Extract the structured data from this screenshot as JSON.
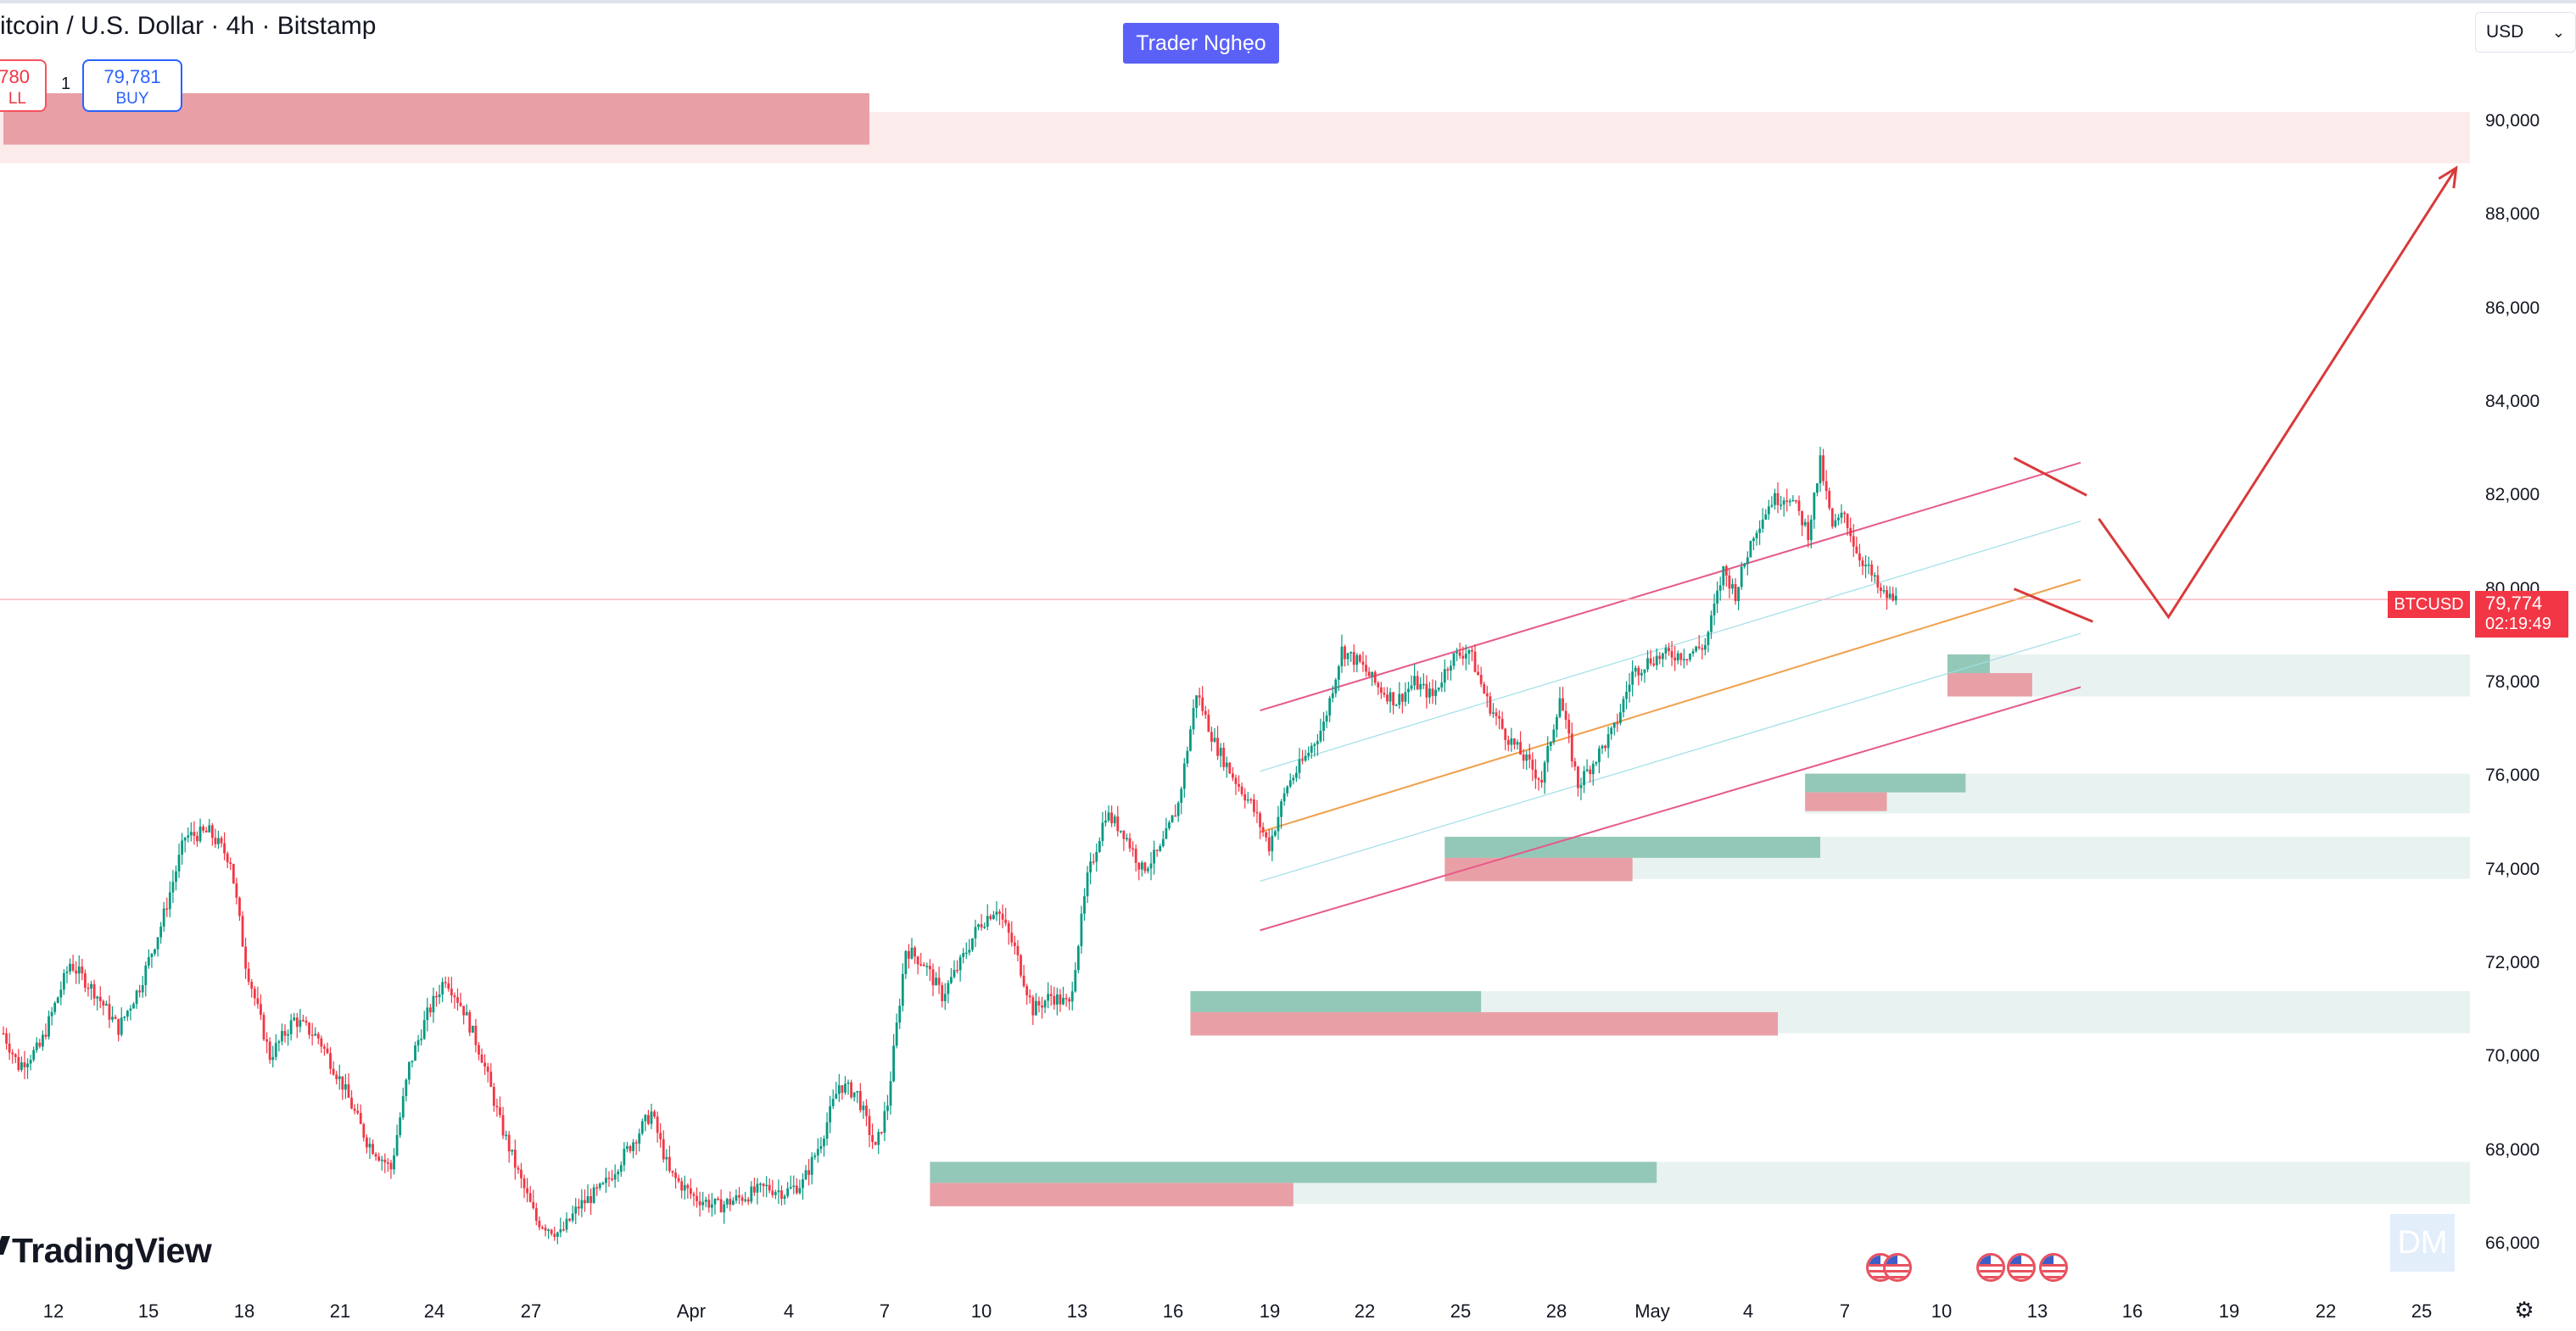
{
  "header": {
    "title": "itcoin / U.S. Dollar · 4h · Bitstamp",
    "sell_price": "780",
    "sell_label": "LL",
    "quantity": "1",
    "buy_price": "79,781",
    "buy_label": "BUY"
  },
  "badge": {
    "text": "Trader Nghẹo"
  },
  "currency_select": {
    "value": "USD",
    "chevron_icon": "chevron-down-icon"
  },
  "price_scale": {
    "ticks": [
      "90,000",
      "88,000",
      "86,000",
      "84,000",
      "82,000",
      "80,000",
      "78,000",
      "76,000",
      "74,000",
      "72,000",
      "70,000",
      "68,000",
      "66,000"
    ]
  },
  "time_scale": {
    "ticks": [
      "12",
      "15",
      "18",
      "21",
      "24",
      "27",
      "Apr",
      "4",
      "7",
      "10",
      "13",
      "16",
      "19",
      "22",
      "25",
      "28",
      "May",
      "4",
      "7",
      "10",
      "13",
      "16",
      "19",
      "22",
      "25"
    ]
  },
  "last_price": {
    "symbol": "BTCUSD",
    "price": "79,774",
    "countdown": "02:19:49",
    "color": "#f23645"
  },
  "watermark": {
    "brand": "TradingView",
    "corner": "DM"
  },
  "colors": {
    "up": "#089981",
    "down": "#f23645",
    "supply_zone": "#e8a0a6",
    "demand_zone": "#93c8b8",
    "zone_ext": "#e8f3f1",
    "top_zone": "#fcebeb",
    "channel": "#e65a8a",
    "midline": "#f0a04a",
    "projection": "#d93a3a"
  },
  "icons": [
    "us-flag-event-icon",
    "settings-icon",
    "chevron-down-icon",
    "tradingview-logo-icon"
  ],
  "chart_data": {
    "type": "candlestick",
    "symbol": "BTCUSD",
    "title": "itcoin / U.S. Dollar · 4h · Bitstamp",
    "timeframe": "4h",
    "ylim": [
      65500,
      91000
    ],
    "x_ticks": [
      "12",
      "15",
      "18",
      "21",
      "24",
      "27",
      "Apr",
      "4",
      "7",
      "10",
      "13",
      "16",
      "19",
      "22",
      "25",
      "28",
      "May",
      "4",
      "7",
      "10",
      "13",
      "16",
      "19",
      "22",
      "25"
    ],
    "last_price": 79774,
    "path_points": [
      [
        0,
        70500
      ],
      [
        5,
        69800
      ],
      [
        12,
        70200
      ],
      [
        22,
        72000
      ],
      [
        30,
        71400
      ],
      [
        38,
        70600
      ],
      [
        45,
        71500
      ],
      [
        52,
        72800
      ],
      [
        60,
        74700
      ],
      [
        68,
        74800
      ],
      [
        75,
        74200
      ],
      [
        80,
        72000
      ],
      [
        88,
        70000
      ],
      [
        96,
        70800
      ],
      [
        104,
        70400
      ],
      [
        112,
        69400
      ],
      [
        120,
        68200
      ],
      [
        128,
        67600
      ],
      [
        134,
        69800
      ],
      [
        140,
        70900
      ],
      [
        146,
        71700
      ],
      [
        152,
        71000
      ],
      [
        158,
        70000
      ],
      [
        164,
        68600
      ],
      [
        170,
        67500
      ],
      [
        176,
        66500
      ],
      [
        184,
        66200
      ],
      [
        190,
        66800
      ],
      [
        198,
        67200
      ],
      [
        206,
        68000
      ],
      [
        214,
        68800
      ],
      [
        220,
        67500
      ],
      [
        228,
        67000
      ],
      [
        236,
        66800
      ],
      [
        244,
        67000
      ],
      [
        252,
        67200
      ],
      [
        258,
        67100
      ],
      [
        264,
        67300
      ],
      [
        270,
        68200
      ],
      [
        276,
        69400
      ],
      [
        282,
        69200
      ],
      [
        288,
        68000
      ],
      [
        292,
        69000
      ],
      [
        298,
        72300
      ],
      [
        304,
        72000
      ],
      [
        310,
        71300
      ],
      [
        316,
        72000
      ],
      [
        322,
        72800
      ],
      [
        328,
        73200
      ],
      [
        334,
        72300
      ],
      [
        340,
        71000
      ],
      [
        346,
        71300
      ],
      [
        352,
        71100
      ],
      [
        358,
        73800
      ],
      [
        364,
        75200
      ],
      [
        370,
        74800
      ],
      [
        376,
        74000
      ],
      [
        382,
        74400
      ],
      [
        388,
        75400
      ],
      [
        394,
        77800
      ],
      [
        400,
        76700
      ],
      [
        406,
        76000
      ],
      [
        412,
        75400
      ],
      [
        418,
        74500
      ],
      [
        424,
        75800
      ],
      [
        430,
        76400
      ],
      [
        436,
        77100
      ],
      [
        442,
        78700
      ],
      [
        448,
        78400
      ],
      [
        454,
        77900
      ],
      [
        460,
        77600
      ],
      [
        466,
        78000
      ],
      [
        472,
        77700
      ],
      [
        478,
        78500
      ],
      [
        484,
        78700
      ],
      [
        490,
        77600
      ],
      [
        496,
        76900
      ],
      [
        502,
        76400
      ],
      [
        508,
        75900
      ],
      [
        514,
        77700
      ],
      [
        520,
        75800
      ],
      [
        526,
        76400
      ],
      [
        532,
        77000
      ],
      [
        538,
        78200
      ],
      [
        544,
        78500
      ],
      [
        550,
        78600
      ],
      [
        556,
        78600
      ],
      [
        562,
        78800
      ],
      [
        568,
        80400
      ],
      [
        572,
        79900
      ],
      [
        578,
        81200
      ],
      [
        584,
        81900
      ],
      [
        590,
        82000
      ],
      [
        596,
        81200
      ],
      [
        600,
        82700
      ],
      [
        604,
        81300
      ],
      [
        608,
        81600
      ],
      [
        612,
        80800
      ],
      [
        616,
        80400
      ],
      [
        620,
        79900
      ],
      [
        624,
        79774
      ]
    ],
    "sample_indices": [
      0,
      5,
      12,
      22,
      30,
      38,
      45,
      52,
      60,
      68,
      75,
      80,
      88,
      96,
      104,
      112,
      120,
      128,
      134,
      140,
      146,
      152,
      158,
      164,
      170,
      176,
      184,
      190,
      198,
      206,
      214,
      220,
      228,
      236,
      244,
      252,
      258,
      264,
      270,
      276,
      282,
      288,
      292,
      298,
      304,
      310,
      316,
      322,
      328,
      334,
      340,
      346,
      352,
      358,
      364,
      370,
      376,
      382,
      388,
      394,
      400,
      406,
      412,
      418,
      424,
      430,
      436,
      442,
      448,
      454,
      460,
      466,
      472,
      478,
      484,
      490,
      496,
      502,
      508,
      514,
      520,
      526,
      532,
      538,
      544,
      550,
      556,
      562,
      568,
      572,
      578,
      584,
      590,
      596,
      600,
      604,
      608,
      612,
      616,
      620,
      624
    ],
    "candle_count": 625,
    "zones": [
      {
        "kind": "supply",
        "top": 90600,
        "bottom": 89500,
        "from": 0,
        "to": 286,
        "ext_to": 900
      },
      {
        "kind": "demand",
        "top": 78600,
        "bottom": 78150,
        "from": 642,
        "to": 656,
        "ext_to": 900
      },
      {
        "kind": "supply",
        "top": 78200,
        "bottom": 77700,
        "from": 642,
        "to": 670,
        "ext_to": 0
      },
      {
        "kind": "demand",
        "top": 76050,
        "bottom": 75650,
        "from": 595,
        "to": 648,
        "ext_to": 900
      },
      {
        "kind": "supply",
        "top": 75650,
        "bottom": 75250,
        "from": 595,
        "to": 622,
        "ext_to": 0
      },
      {
        "kind": "demand",
        "top": 74700,
        "bottom": 74250,
        "from": 476,
        "to": 600,
        "ext_to": 900
      },
      {
        "kind": "supply",
        "top": 74250,
        "bottom": 73750,
        "from": 476,
        "to": 538,
        "ext_to": 0
      },
      {
        "kind": "demand",
        "top": 71400,
        "bottom": 70950,
        "from": 392,
        "to": 488,
        "ext_to": 900
      },
      {
        "kind": "supply",
        "top": 70950,
        "bottom": 70450,
        "from": 392,
        "to": 586,
        "ext_to": 0
      },
      {
        "kind": "demand",
        "top": 67750,
        "bottom": 67300,
        "from": 306,
        "to": 546,
        "ext_to": 900
      },
      {
        "kind": "supply",
        "top": 67300,
        "bottom": 66800,
        "from": 306,
        "to": 426,
        "ext_to": 0
      }
    ],
    "channel": {
      "start_index": 415,
      "end_index": 686,
      "upper": [
        77400,
        82700
      ],
      "mid": [
        74800,
        80200
      ],
      "lower": [
        72700,
        77900
      ]
    },
    "projection": [
      [
        692,
        81500
      ],
      [
        715,
        79400
      ],
      [
        810,
        89000
      ]
    ],
    "annotations": [
      "Trader Nghẹo"
    ]
  }
}
